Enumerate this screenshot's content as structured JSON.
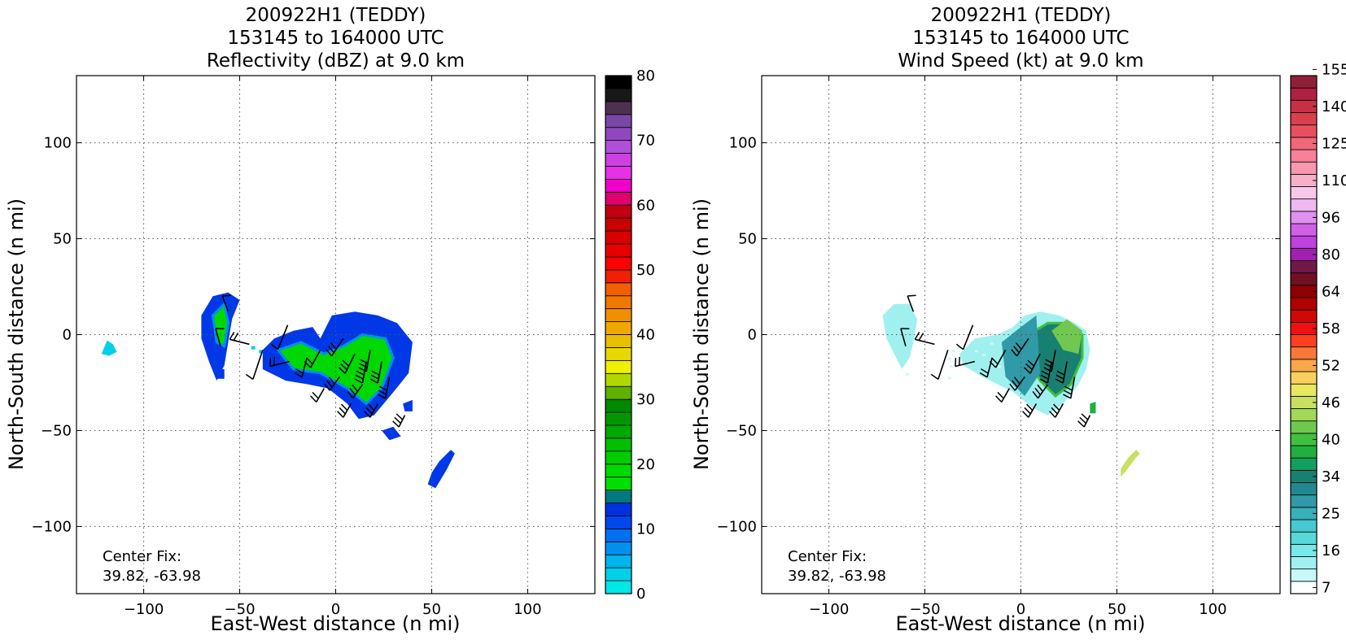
{
  "panels": [
    {
      "title_lines": [
        "200922H1 (TEDDY)",
        "153145 to 164000 UTC",
        "Reflectivity (dBZ) at 9.0 km"
      ],
      "xlabel": "East-West distance (n mi)",
      "ylabel": "North-South distance (n mi)",
      "center_fix_label": "Center Fix:",
      "center_fix_value": "39.82, -63.98"
    },
    {
      "title_lines": [
        "200922H1 (TEDDY)",
        "153145 to 164000 UTC",
        "Wind Speed (kt) at 9.0 km"
      ],
      "xlabel": "East-West distance (n mi)",
      "ylabel": "North-South distance (n mi)",
      "center_fix_label": "Center Fix:",
      "center_fix_value": "39.82, -63.98"
    }
  ],
  "chart_data": [
    {
      "type": "heatmap",
      "title": "200922H1 (TEDDY) 153145 to 164000 UTC Reflectivity (dBZ) at 9.0 km",
      "xlabel": "East-West distance (n mi)",
      "ylabel": "North-South distance (n mi)",
      "xlim": [
        -135,
        135
      ],
      "ylim": [
        -135,
        135
      ],
      "xticks": [
        -100,
        -50,
        0,
        50,
        100
      ],
      "yticks": [
        -100,
        -50,
        0,
        50,
        100
      ],
      "grid": true,
      "colorbar": {
        "min": 0,
        "max": 80,
        "step": 2.5,
        "ticks": [
          0,
          10,
          20,
          30,
          40,
          50,
          60,
          70,
          80
        ],
        "colors": [
          "#00e8e8",
          "#00d0e8",
          "#00b4ee",
          "#0090f0",
          "#0070f0",
          "#0048ee",
          "#0030e0",
          "#007880",
          "#00e000",
          "#00d800",
          "#00cc00",
          "#00c000",
          "#00a800",
          "#009800",
          "#008800",
          "#60b000",
          "#b0d800",
          "#f0f000",
          "#e8d800",
          "#e8c000",
          "#f0a800",
          "#f09000",
          "#f07800",
          "#f06000",
          "#f02000",
          "#ff0000",
          "#e80000",
          "#d80000",
          "#c80000",
          "#c00010",
          "#e00070",
          "#f000c8",
          "#e830e8",
          "#d040e0",
          "#b050d8",
          "#9048c0",
          "#7848a8",
          "#503050",
          "#181818",
          "#000000"
        ]
      },
      "echoes": [
        {
          "name": "main-core",
          "x": [
            -40,
            40
          ],
          "y": [
            -45,
            12
          ]
        },
        {
          "name": "west-band",
          "x": [
            -72,
            -50
          ],
          "y": [
            -25,
            22
          ]
        },
        {
          "name": "far-west-speck",
          "x": [
            -122,
            -114
          ],
          "y": [
            -12,
            -2
          ]
        },
        {
          "name": "southeast-band",
          "x": [
            46,
            62
          ],
          "y": [
            -80,
            -60
          ]
        }
      ],
      "wind_barbs": true,
      "annotation": "Center Fix: 39.82, -63.98"
    },
    {
      "type": "heatmap",
      "title": "200922H1 (TEDDY) 153145 to 164000 UTC Wind Speed (kt) at 9.0 km",
      "xlabel": "East-West distance (n mi)",
      "ylabel": "North-South distance (n mi)",
      "xlim": [
        -135,
        135
      ],
      "ylim": [
        -135,
        135
      ],
      "xticks": [
        -100,
        -50,
        0,
        50,
        100
      ],
      "yticks": [
        -100,
        -50,
        0,
        50,
        100
      ],
      "grid": true,
      "colorbar": {
        "ticks": [
          7,
          16,
          25,
          34,
          40,
          46,
          52,
          58,
          64,
          80,
          96,
          110,
          125,
          140,
          155
        ],
        "colors": [
          "#ffffff",
          "#c8f8f8",
          "#a0f0f0",
          "#78e8e8",
          "#58d8d8",
          "#48c8d0",
          "#38b0b8",
          "#309aa8",
          "#208890",
          "#188070",
          "#10a060",
          "#20b040",
          "#40c040",
          "#70c850",
          "#a0d858",
          "#c8e060",
          "#e8e860",
          "#f8d060",
          "#f8a848",
          "#f87838",
          "#ff4020",
          "#f01010",
          "#d00808",
          "#b00000",
          "#900000",
          "#701020",
          "#701848",
          "#a020b0",
          "#c040e0",
          "#d060e8",
          "#e090f0",
          "#f0b8f0",
          "#f8c8e8",
          "#f8b0c8",
          "#f898b0",
          "#f88098",
          "#f06878",
          "#e85060",
          "#d84050",
          "#c83048",
          "#b02040",
          "#902038"
        ]
      },
      "echoes": [
        {
          "name": "main-core",
          "x": [
            -35,
            38
          ],
          "y": [
            -45,
            12
          ]
        },
        {
          "name": "west-band",
          "x": [
            -72,
            -52
          ],
          "y": [
            -20,
            16
          ]
        },
        {
          "name": "southeast-band",
          "x": [
            52,
            62
          ],
          "y": [
            -75,
            -60
          ]
        }
      ],
      "wind_barbs": true,
      "annotation": "Center Fix: 39.82, -63.98"
    }
  ]
}
